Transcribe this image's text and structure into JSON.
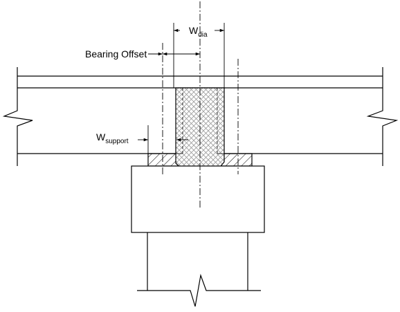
{
  "labels": {
    "w_dia": {
      "main": "W",
      "sub": "dia"
    },
    "bearing_offset": "Bearing Offset",
    "w_support": {
      "main": "W",
      "sub": "support"
    }
  },
  "colors": {
    "line": "#000000",
    "hatch": "#000000",
    "diaphragm_hatch": "#9a9a9a",
    "background": "#ffffff"
  }
}
